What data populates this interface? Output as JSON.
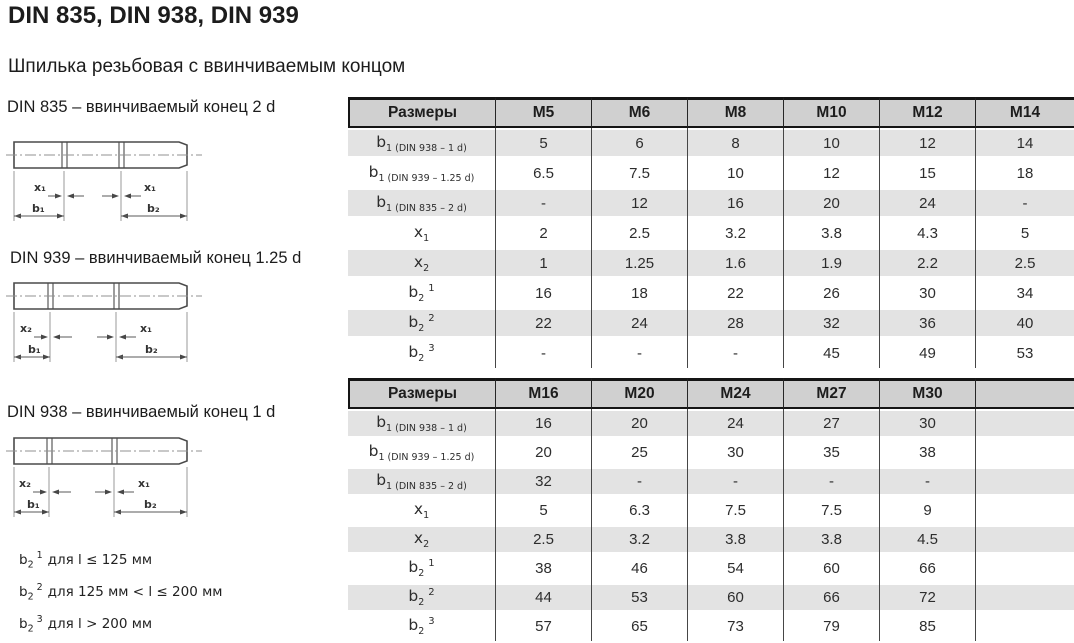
{
  "page": {
    "title": "DIN 835, DIN 938, DIN 939",
    "subtitle": "Шпилька резьбовая с ввинчиваемым концом"
  },
  "drawings": [
    {
      "label": "DIN 835 – ввинчиваемый конец 2 d",
      "x_left": "x₁",
      "x_right": "x₁",
      "b_left": "b₁",
      "b_right": "b₂"
    },
    {
      "label": "DIN 939 – ввинчиваемый конец 1.25 d",
      "x_left": "x₂",
      "x_right": "x₁",
      "b_left": "b₁",
      "b_right": "b₂"
    },
    {
      "label": "DIN 938 – ввинчиваемый конец 1 d",
      "x_left": "x₂",
      "x_right": "x₁",
      "b_left": "b₁",
      "b_right": "b₂"
    }
  ],
  "footnotes": [
    {
      "base": "b",
      "sub": "2",
      "sup": "1",
      "text": "для l ≤ 125 мм"
    },
    {
      "base": "b",
      "sub": "2",
      "sup": "2",
      "text": "для 125 мм < l ≤ 200 мм"
    },
    {
      "base": "b",
      "sub": "2",
      "sup": "3",
      "text": "для l > 200 мм"
    }
  ],
  "tables": [
    {
      "header": [
        "Размеры",
        "M5",
        "M6",
        "M8",
        "M10",
        "M12",
        "M14"
      ],
      "rows": [
        {
          "base": "b",
          "sub": "1 (DIN 938 – 1 d)",
          "sup": "",
          "values": [
            "5",
            "6",
            "8",
            "10",
            "12",
            "14"
          ]
        },
        {
          "base": "b",
          "sub": "1 (DIN 939 – 1.25 d)",
          "sup": "",
          "values": [
            "6.5",
            "7.5",
            "10",
            "12",
            "15",
            "18"
          ]
        },
        {
          "base": "b",
          "sub": "1 (DIN 835 – 2 d)",
          "sup": "",
          "values": [
            "-",
            "12",
            "16",
            "20",
            "24",
            "-"
          ]
        },
        {
          "base": "x",
          "sub": "1",
          "sup": "",
          "values": [
            "2",
            "2.5",
            "3.2",
            "3.8",
            "4.3",
            "5"
          ]
        },
        {
          "base": "x",
          "sub": "2",
          "sup": "",
          "values": [
            "1",
            "1.25",
            "1.6",
            "1.9",
            "2.2",
            "2.5"
          ]
        },
        {
          "base": "b",
          "sub": "2",
          "sup": "1",
          "values": [
            "16",
            "18",
            "22",
            "26",
            "30",
            "34"
          ]
        },
        {
          "base": "b",
          "sub": "2",
          "sup": "2",
          "values": [
            "22",
            "24",
            "28",
            "32",
            "36",
            "40"
          ]
        },
        {
          "base": "b",
          "sub": "2",
          "sup": "3",
          "values": [
            "-",
            "-",
            "-",
            "45",
            "49",
            "53"
          ]
        }
      ]
    },
    {
      "header": [
        "Размеры",
        "M16",
        "M20",
        "M24",
        "M27",
        "M30",
        ""
      ],
      "rows": [
        {
          "base": "b",
          "sub": "1 (DIN 938 – 1 d)",
          "sup": "",
          "values": [
            "16",
            "20",
            "24",
            "27",
            "30",
            ""
          ]
        },
        {
          "base": "b",
          "sub": "1 (DIN 939 – 1.25 d)",
          "sup": "",
          "values": [
            "20",
            "25",
            "30",
            "35",
            "38",
            ""
          ]
        },
        {
          "base": "b",
          "sub": "1 (DIN 835 – 2 d)",
          "sup": "",
          "values": [
            "32",
            "-",
            "-",
            "-",
            "-",
            ""
          ]
        },
        {
          "base": "x",
          "sub": "1",
          "sup": "",
          "values": [
            "5",
            "6.3",
            "7.5",
            "7.5",
            "9",
            ""
          ]
        },
        {
          "base": "x",
          "sub": "2",
          "sup": "",
          "values": [
            "2.5",
            "3.2",
            "3.8",
            "3.8",
            "4.5",
            ""
          ]
        },
        {
          "base": "b",
          "sub": "2",
          "sup": "1",
          "values": [
            "38",
            "46",
            "54",
            "60",
            "66",
            ""
          ]
        },
        {
          "base": "b",
          "sub": "2",
          "sup": "2",
          "values": [
            "44",
            "53",
            "60",
            "66",
            "72",
            ""
          ]
        },
        {
          "base": "b",
          "sub": "2",
          "sup": "3",
          "values": [
            "57",
            "65",
            "73",
            "79",
            "85",
            ""
          ]
        }
      ]
    }
  ],
  "colors": {
    "header_bg": "#d0d0d0",
    "stripe_bg": "#e3e3e3",
    "grid_line": "#464646",
    "heavy_border": "#151515"
  }
}
